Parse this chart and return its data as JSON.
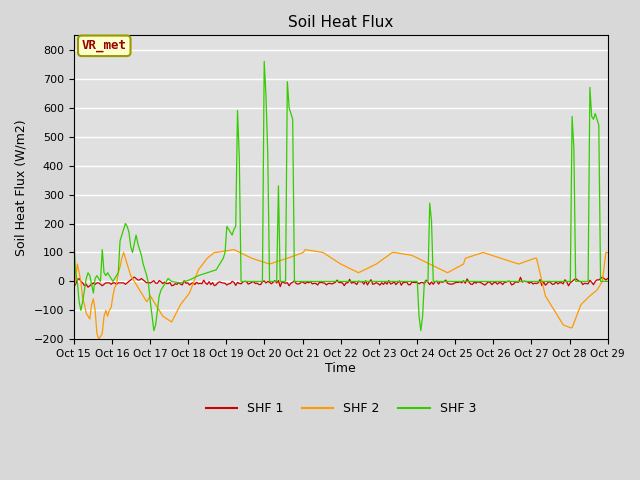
{
  "title": "Soil Heat Flux",
  "xlabel": "Time",
  "ylabel": "Soil Heat Flux (W/m2)",
  "ylim": [
    -200,
    850
  ],
  "yticks": [
    -200,
    -100,
    0,
    100,
    200,
    300,
    400,
    500,
    600,
    700,
    800
  ],
  "x_tick_labels": [
    "Oct 15",
    "Oct 16",
    "Oct 17",
    "Oct 18",
    "Oct 19",
    "Oct 20",
    "Oct 21",
    "Oct 22",
    "Oct 23",
    "Oct 24",
    "Oct 25",
    "Oct 26",
    "Oct 27",
    "Oct 28",
    "Oct 29"
  ],
  "colors": {
    "SHF1": "#cc0000",
    "SHF2": "#ff9900",
    "SHF3": "#33cc00",
    "background": "#e0e0e0",
    "grid": "#ffffff",
    "annotation_bg": "#ffffcc",
    "annotation_text": "#990000",
    "annotation_border": "#999900"
  },
  "legend_labels": [
    "SHF 1",
    "SHF 2",
    "SHF 3"
  ],
  "annotation_text": "VR_met"
}
